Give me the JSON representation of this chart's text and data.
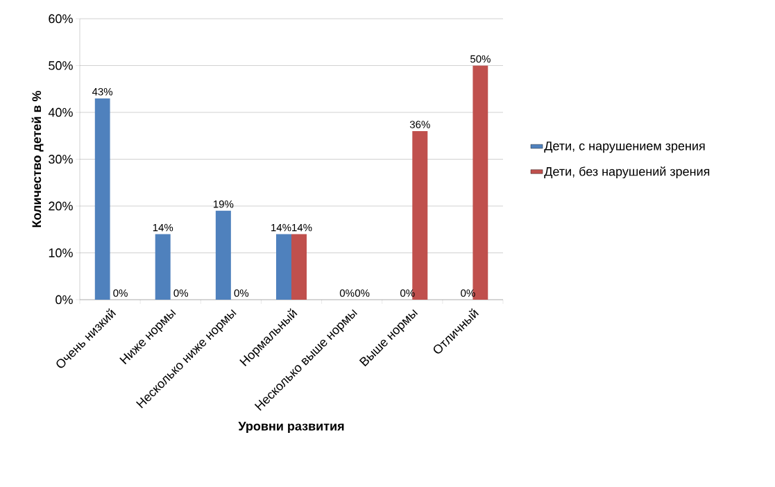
{
  "chart_data": {
    "type": "bar",
    "xlabel": "Уровни развития",
    "ylabel": "Количество детей в %",
    "categories": [
      "Очень низкий",
      "Ниже нормы",
      "Несколько ниже нормы",
      "Нормальный",
      "Несколько выше нормы",
      "Выше нормы",
      "Отличный"
    ],
    "series": [
      {
        "name": "Дети, с нарушением зрения",
        "color": "#4f81bd",
        "values": [
          43,
          14,
          19,
          14,
          0,
          0,
          0
        ],
        "value_labels": [
          "43%",
          "14%",
          "19%",
          "14%",
          "0%",
          "0%",
          "0%"
        ]
      },
      {
        "name": "Дети, без нарушений зрения",
        "color": "#c0504d",
        "values": [
          0,
          0,
          0,
          14,
          0,
          36,
          50
        ],
        "value_labels": [
          "0%",
          "0%",
          "0%",
          "14%",
          "0%",
          "36%",
          "50%"
        ]
      }
    ],
    "ylim": [
      0,
      60
    ],
    "yticks": [
      {
        "value": 0,
        "label": "0%"
      },
      {
        "value": 10,
        "label": "10%"
      },
      {
        "value": 20,
        "label": "20%"
      },
      {
        "value": 30,
        "label": "30%"
      },
      {
        "value": 40,
        "label": "40%"
      },
      {
        "value": 50,
        "label": "50%"
      },
      {
        "value": 60,
        "label": "60%"
      }
    ],
    "grid": "y",
    "legend": "right"
  }
}
